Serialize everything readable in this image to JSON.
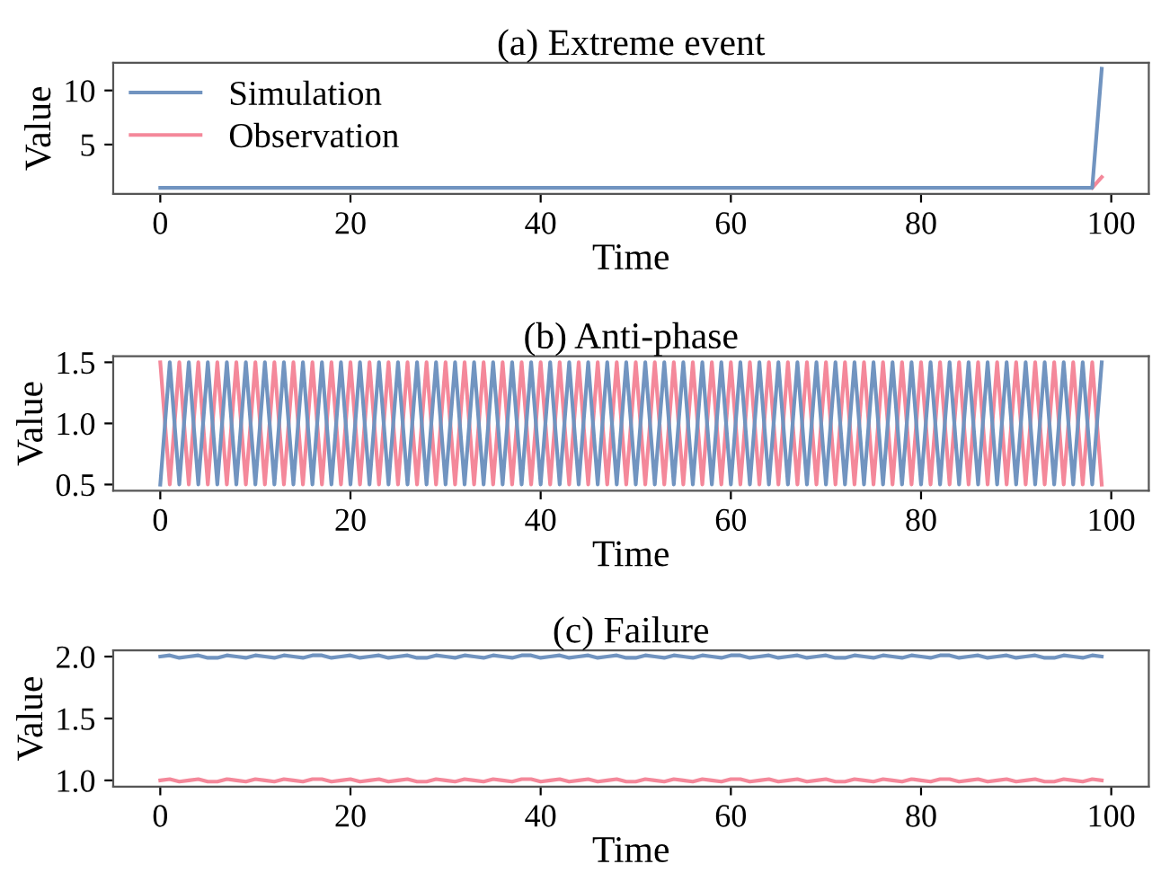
{
  "chart_data": [
    {
      "type": "line",
      "title": "(a) Extreme event",
      "xlabel": "Time",
      "ylabel": "Value",
      "x": [
        0,
        1,
        2,
        3,
        4,
        5,
        6,
        7,
        8,
        9,
        10,
        11,
        12,
        13,
        14,
        15,
        16,
        17,
        18,
        19,
        20,
        21,
        22,
        23,
        24,
        25,
        26,
        27,
        28,
        29,
        30,
        31,
        32,
        33,
        34,
        35,
        36,
        37,
        38,
        39,
        40,
        41,
        42,
        43,
        44,
        45,
        46,
        47,
        48,
        49,
        50,
        51,
        52,
        53,
        54,
        55,
        56,
        57,
        58,
        59,
        60,
        61,
        62,
        63,
        64,
        65,
        66,
        67,
        68,
        69,
        70,
        71,
        72,
        73,
        74,
        75,
        76,
        77,
        78,
        79,
        80,
        81,
        82,
        83,
        84,
        85,
        86,
        87,
        88,
        89,
        90,
        91,
        92,
        93,
        94,
        95,
        96,
        97,
        98,
        99
      ],
      "xlim": [
        -4.95,
        103.95
      ],
      "xticks": [
        0,
        20,
        40,
        60,
        80,
        100
      ],
      "ylim": [
        0.45,
        12.55
      ],
      "yticks": [
        5,
        10
      ],
      "legend": "top left",
      "series": [
        {
          "name": "Simulation",
          "color": "#7194c0",
          "values": [
            1,
            1,
            1,
            1,
            1,
            1,
            1,
            1,
            1,
            1,
            1,
            1,
            1,
            1,
            1,
            1,
            1,
            1,
            1,
            1,
            1,
            1,
            1,
            1,
            1,
            1,
            1,
            1,
            1,
            1,
            1,
            1,
            1,
            1,
            1,
            1,
            1,
            1,
            1,
            1,
            1,
            1,
            1,
            1,
            1,
            1,
            1,
            1,
            1,
            1,
            1,
            1,
            1,
            1,
            1,
            1,
            1,
            1,
            1,
            1,
            1,
            1,
            1,
            1,
            1,
            1,
            1,
            1,
            1,
            1,
            1,
            1,
            1,
            1,
            1,
            1,
            1,
            1,
            1,
            1,
            1,
            1,
            1,
            1,
            1,
            1,
            1,
            1,
            1,
            1,
            1,
            1,
            1,
            1,
            1,
            1,
            1,
            1,
            1,
            12
          ]
        },
        {
          "name": "Observation",
          "color": "#f4889a",
          "values": [
            null,
            null,
            null,
            null,
            null,
            null,
            null,
            null,
            null,
            null,
            null,
            null,
            null,
            null,
            null,
            null,
            null,
            null,
            null,
            null,
            null,
            null,
            null,
            null,
            null,
            null,
            null,
            null,
            null,
            null,
            null,
            null,
            null,
            null,
            null,
            null,
            null,
            null,
            null,
            null,
            null,
            null,
            null,
            null,
            null,
            null,
            null,
            null,
            null,
            null,
            null,
            null,
            null,
            null,
            null,
            null,
            null,
            null,
            null,
            null,
            null,
            null,
            null,
            null,
            null,
            null,
            null,
            null,
            null,
            null,
            null,
            null,
            null,
            null,
            null,
            null,
            null,
            null,
            null,
            null,
            null,
            null,
            null,
            null,
            null,
            null,
            null,
            null,
            null,
            null,
            null,
            null,
            null,
            null,
            null,
            null,
            null,
            null,
            1,
            2
          ]
        }
      ]
    },
    {
      "type": "line",
      "title": "(b) Anti-phase",
      "xlabel": "Time",
      "ylabel": "Value",
      "x": [
        0,
        1,
        2,
        3,
        4,
        5,
        6,
        7,
        8,
        9,
        10,
        11,
        12,
        13,
        14,
        15,
        16,
        17,
        18,
        19,
        20,
        21,
        22,
        23,
        24,
        25,
        26,
        27,
        28,
        29,
        30,
        31,
        32,
        33,
        34,
        35,
        36,
        37,
        38,
        39,
        40,
        41,
        42,
        43,
        44,
        45,
        46,
        47,
        48,
        49,
        50,
        51,
        52,
        53,
        54,
        55,
        56,
        57,
        58,
        59,
        60,
        61,
        62,
        63,
        64,
        65,
        66,
        67,
        68,
        69,
        70,
        71,
        72,
        73,
        74,
        75,
        76,
        77,
        78,
        79,
        80,
        81,
        82,
        83,
        84,
        85,
        86,
        87,
        88,
        89,
        90,
        91,
        92,
        93,
        94,
        95,
        96,
        97,
        98,
        99
      ],
      "xlim": [
        -4.95,
        103.95
      ],
      "xticks": [
        0,
        20,
        40,
        60,
        80,
        100
      ],
      "ylim": [
        0.45,
        1.55
      ],
      "yticks": [
        0.5,
        {
          "value": 1.0,
          "label": "1.0"
        },
        1.5
      ],
      "series": [
        {
          "color": "#7194c0",
          "values": [
            0.5,
            1.5,
            0.5,
            1.5,
            0.5,
            1.5,
            0.5,
            1.5,
            0.5,
            1.5,
            0.5,
            1.5,
            0.5,
            1.5,
            0.5,
            1.5,
            0.5,
            1.5,
            0.5,
            1.5,
            0.5,
            1.5,
            0.5,
            1.5,
            0.5,
            1.5,
            0.5,
            1.5,
            0.5,
            1.5,
            0.5,
            1.5,
            0.5,
            1.5,
            0.5,
            1.5,
            0.5,
            1.5,
            0.5,
            1.5,
            0.5,
            1.5,
            0.5,
            1.5,
            0.5,
            1.5,
            0.5,
            1.5,
            0.5,
            1.5,
            0.5,
            1.5,
            0.5,
            1.5,
            0.5,
            1.5,
            0.5,
            1.5,
            0.5,
            1.5,
            0.5,
            1.5,
            0.5,
            1.5,
            0.5,
            1.5,
            0.5,
            1.5,
            0.5,
            1.5,
            0.5,
            1.5,
            0.5,
            1.5,
            0.5,
            1.5,
            0.5,
            1.5,
            0.5,
            1.5,
            0.5,
            1.5,
            0.5,
            1.5,
            0.5,
            1.5,
            0.5,
            1.5,
            0.5,
            1.5,
            0.5,
            1.5,
            0.5,
            1.5,
            0.5,
            1.5,
            0.5,
            1.5,
            0.5,
            1.5
          ]
        },
        {
          "color": "#f4889a",
          "values": [
            1.5,
            0.5,
            1.5,
            0.5,
            1.5,
            0.5,
            1.5,
            0.5,
            1.5,
            0.5,
            1.5,
            0.5,
            1.5,
            0.5,
            1.5,
            0.5,
            1.5,
            0.5,
            1.5,
            0.5,
            1.5,
            0.5,
            1.5,
            0.5,
            1.5,
            0.5,
            1.5,
            0.5,
            1.5,
            0.5,
            1.5,
            0.5,
            1.5,
            0.5,
            1.5,
            0.5,
            1.5,
            0.5,
            1.5,
            0.5,
            1.5,
            0.5,
            1.5,
            0.5,
            1.5,
            0.5,
            1.5,
            0.5,
            1.5,
            0.5,
            1.5,
            0.5,
            1.5,
            0.5,
            1.5,
            0.5,
            1.5,
            0.5,
            1.5,
            0.5,
            1.5,
            0.5,
            1.5,
            0.5,
            1.5,
            0.5,
            1.5,
            0.5,
            1.5,
            0.5,
            1.5,
            0.5,
            1.5,
            0.5,
            1.5,
            0.5,
            1.5,
            0.5,
            1.5,
            0.5,
            1.5,
            0.5,
            1.5,
            0.5,
            1.5,
            0.5,
            1.5,
            0.5,
            1.5,
            0.5,
            1.5,
            0.5,
            1.5,
            0.5,
            1.5,
            0.5,
            1.5,
            0.5,
            1.5,
            0.5
          ]
        }
      ]
    },
    {
      "type": "line",
      "title": "(c) Failure",
      "xlabel": "Time",
      "ylabel": "Value",
      "x": [
        0,
        1,
        2,
        3,
        4,
        5,
        6,
        7,
        8,
        9,
        10,
        11,
        12,
        13,
        14,
        15,
        16,
        17,
        18,
        19,
        20,
        21,
        22,
        23,
        24,
        25,
        26,
        27,
        28,
        29,
        30,
        31,
        32,
        33,
        34,
        35,
        36,
        37,
        38,
        39,
        40,
        41,
        42,
        43,
        44,
        45,
        46,
        47,
        48,
        49,
        50,
        51,
        52,
        53,
        54,
        55,
        56,
        57,
        58,
        59,
        60,
        61,
        62,
        63,
        64,
        65,
        66,
        67,
        68,
        69,
        70,
        71,
        72,
        73,
        74,
        75,
        76,
        77,
        78,
        79,
        80,
        81,
        82,
        83,
        84,
        85,
        86,
        87,
        88,
        89,
        90,
        91,
        92,
        93,
        94,
        95,
        96,
        97,
        98,
        99
      ],
      "xlim": [
        -4.95,
        103.95
      ],
      "xticks": [
        0,
        20,
        40,
        60,
        80,
        100
      ],
      "ylim": [
        0.95,
        2.05
      ],
      "yticks": [
        {
          "value": 1.0,
          "label": "1.0"
        },
        {
          "value": 1.5,
          "label": "1.5"
        },
        {
          "value": 2.0,
          "label": "2.0"
        }
      ],
      "series": [
        {
          "color": "#7194c0",
          "values": [
            2.0,
            2.01,
            1.99,
            2.0,
            2.01,
            1.99,
            1.99,
            2.01,
            2.0,
            1.99,
            2.01,
            2.0,
            1.99,
            2.01,
            2.0,
            1.99,
            2.01,
            2.01,
            1.99,
            2.0,
            2.01,
            1.99,
            2.0,
            2.01,
            1.99,
            2.0,
            2.01,
            1.99,
            1.99,
            2.01,
            2.0,
            1.99,
            2.01,
            2.0,
            1.99,
            2.01,
            2.0,
            1.99,
            2.01,
            2.01,
            1.99,
            2.0,
            2.01,
            1.99,
            2.0,
            2.01,
            1.99,
            2.0,
            2.01,
            1.99,
            1.99,
            2.01,
            2.0,
            1.99,
            2.01,
            2.0,
            1.99,
            2.01,
            2.0,
            1.99,
            2.01,
            2.01,
            1.99,
            2.0,
            2.01,
            1.99,
            2.0,
            2.01,
            1.99,
            2.0,
            2.01,
            1.99,
            1.99,
            2.01,
            2.0,
            1.99,
            2.01,
            2.0,
            1.99,
            2.01,
            2.0,
            1.99,
            2.01,
            2.01,
            1.99,
            2.0,
            2.01,
            1.99,
            2.0,
            2.01,
            1.99,
            2.0,
            2.01,
            1.99,
            1.99,
            2.01,
            2.0,
            1.99,
            2.01,
            2.0
          ]
        },
        {
          "color": "#f4889a",
          "values": [
            1.0,
            1.01,
            0.99,
            1.0,
            1.01,
            0.99,
            0.99,
            1.01,
            1.0,
            0.99,
            1.01,
            1.0,
            0.99,
            1.01,
            1.0,
            0.99,
            1.01,
            1.01,
            0.99,
            1.0,
            1.01,
            0.99,
            1.0,
            1.01,
            0.99,
            1.0,
            1.01,
            0.99,
            0.99,
            1.01,
            1.0,
            0.99,
            1.01,
            1.0,
            0.99,
            1.01,
            1.0,
            0.99,
            1.01,
            1.01,
            0.99,
            1.0,
            1.01,
            0.99,
            1.0,
            1.01,
            0.99,
            1.0,
            1.01,
            0.99,
            0.99,
            1.01,
            1.0,
            0.99,
            1.01,
            1.0,
            0.99,
            1.01,
            1.0,
            0.99,
            1.01,
            1.01,
            0.99,
            1.0,
            1.01,
            0.99,
            1.0,
            1.01,
            0.99,
            1.0,
            1.01,
            0.99,
            0.99,
            1.01,
            1.0,
            0.99,
            1.01,
            1.0,
            0.99,
            1.01,
            1.0,
            0.99,
            1.01,
            1.01,
            0.99,
            1.0,
            1.01,
            0.99,
            1.0,
            1.01,
            0.99,
            1.0,
            1.01,
            0.99,
            0.99,
            1.01,
            1.0,
            0.99,
            1.01,
            1.0
          ]
        }
      ]
    }
  ]
}
